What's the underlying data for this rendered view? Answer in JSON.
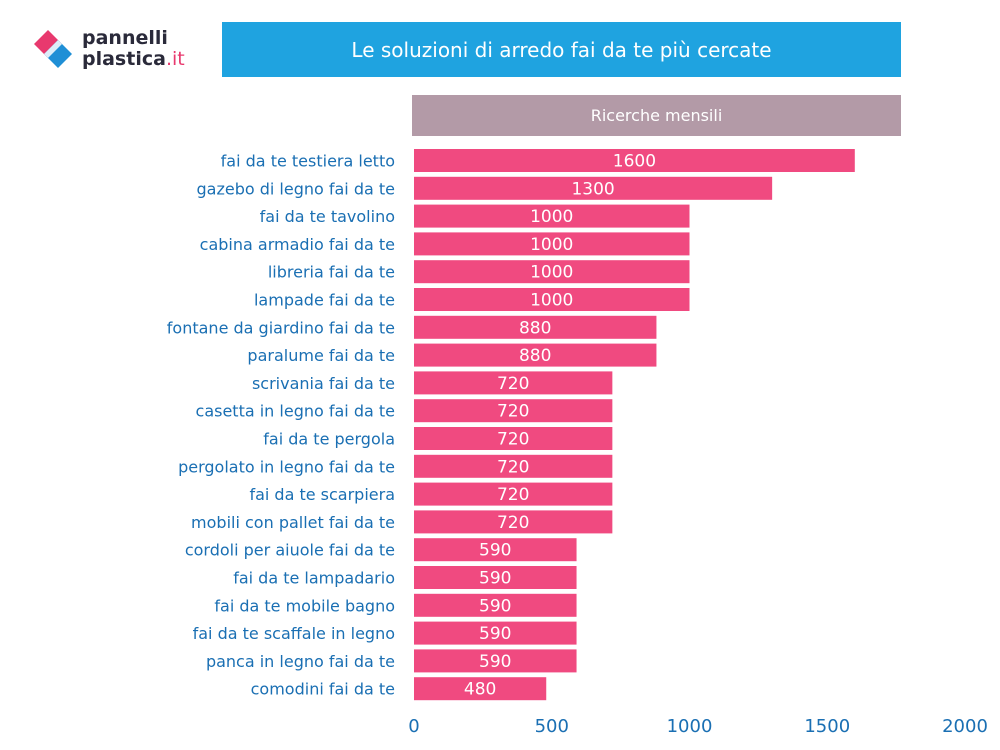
{
  "brand": {
    "line1": "pannelli",
    "line2a": "plastica",
    "line2b": ".it"
  },
  "colors": {
    "bar": "#f04a80",
    "label": "#1a6fb3",
    "title_bg": "#1fa3e0",
    "header_bg": "#b39aa7",
    "logo_pink": "#e8396e",
    "logo_blue": "#1f8fd6"
  },
  "chart_data": {
    "type": "bar",
    "orientation": "horizontal",
    "title": "Le soluzioni di arredo fai da te più cercate",
    "series_name": "Ricerche mensili",
    "categories": [
      "fai da te testiera letto",
      "gazebo di legno fai da te",
      "fai da te tavolino",
      "cabina armadio fai da te",
      "libreria fai da te",
      "lampade fai da te",
      "fontane da giardino fai da te",
      "paralume fai da te",
      "scrivania fai da te",
      "casetta in legno fai da te",
      "fai da te pergola",
      "pergolato in legno fai da te",
      "fai da te scarpiera",
      "mobili con pallet fai da te",
      "cordoli per aiuole fai da te",
      "fai da te lampadario",
      "fai da te mobile bagno",
      "fai da te scaffale in legno",
      "panca in legno fai da te",
      "comodini fai da te"
    ],
    "values": [
      1600,
      1300,
      1000,
      1000,
      1000,
      1000,
      880,
      880,
      720,
      720,
      720,
      720,
      720,
      720,
      590,
      590,
      590,
      590,
      590,
      480
    ],
    "xlim": [
      0,
      2000
    ],
    "xticks": [
      0,
      500,
      1000,
      1500,
      2000
    ],
    "grid": false
  }
}
